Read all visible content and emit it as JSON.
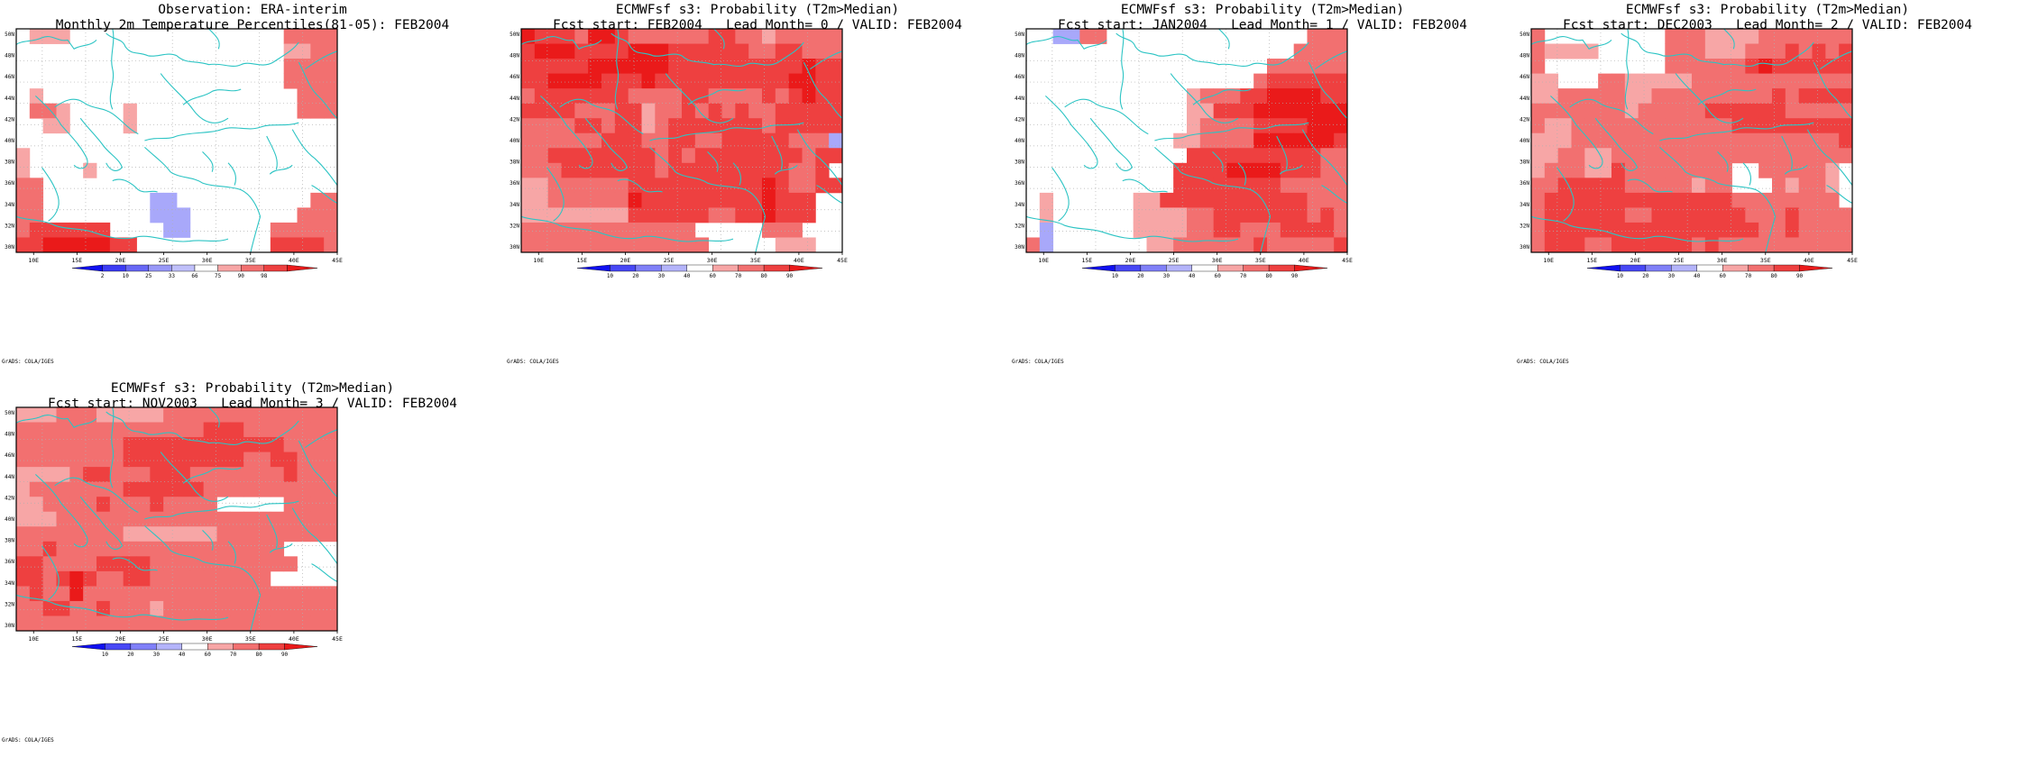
{
  "credit": "GrADS: COLA/IGES",
  "axes": {
    "lon_labels": [
      "10E",
      "15E",
      "20E",
      "25E",
      "30E",
      "35E",
      "40E",
      "45E"
    ],
    "lat_labels": [
      "30N",
      "32N",
      "34N",
      "36N",
      "38N",
      "40N",
      "42N",
      "44N",
      "46N",
      "48N",
      "50N"
    ]
  },
  "colors": {
    "coast": "#2cc4c4",
    "grid": "#b0b0b0",
    "white": "#ffffff",
    "light_red": "#f7a6a6",
    "medium_red": "#f27070",
    "strong_red": "#ee4040",
    "deep_red": "#ea1a1a",
    "light_blue": "#a8a8fa",
    "prob_colorbar": [
      "#1010f0",
      "#4848f5",
      "#8080f8",
      "#b4b4fa",
      "#ffffff",
      "#f7a6a6",
      "#f27070",
      "#ee4040",
      "#ea1a1a"
    ],
    "obs_colorbar": [
      "#1010f0",
      "#3c3cf4",
      "#6868f6",
      "#9898f8",
      "#c0c0fa",
      "#ffffff",
      "#f7a6a6",
      "#f27070",
      "#ee4040",
      "#ea1a1a"
    ]
  },
  "panels": [
    {
      "title_line1": "Observation: ERA-interim",
      "title_line2": "Monthly 2m Temperature Percentiles(81-05): FEB2004",
      "colorbar_labels": [
        "2",
        "10",
        "25",
        "33",
        "66",
        "75",
        "90",
        "98"
      ],
      "colorbar_type": "obs"
    },
    {
      "title_line1": "ECMWFsf s3: Probability (T2m>Median)",
      "title_line2": "Fcst start: FEB2004   Lead Month= 0 / VALID: FEB2004",
      "colorbar_labels": [
        "10",
        "20",
        "30",
        "40",
        "60",
        "70",
        "80",
        "90"
      ],
      "colorbar_type": "prob"
    },
    {
      "title_line1": "ECMWFsf s3: Probability (T2m>Median)",
      "title_line2": "Fcst start: JAN2004   Lead Month= 1 / VALID: FEB2004",
      "colorbar_labels": [
        "10",
        "20",
        "30",
        "40",
        "60",
        "70",
        "80",
        "90"
      ],
      "colorbar_type": "prob"
    },
    {
      "title_line1": "ECMWFsf s3: Probability (T2m>Median)",
      "title_line2": "Fcst start: DEC2003   Lead Month= 2 / VALID: FEB2004",
      "colorbar_labels": [
        "10",
        "20",
        "30",
        "40",
        "60",
        "70",
        "80",
        "90"
      ],
      "colorbar_type": "prob"
    },
    {
      "title_line1": "ECMWFsf s3: Probability (T2m>Median)",
      "title_line2": "Fcst start: NOV2003   Lead Month= 3 / VALID: FEB2004",
      "colorbar_labels": [
        "10",
        "20",
        "30",
        "40",
        "60",
        "70",
        "80",
        "90"
      ],
      "colorbar_type": "prob"
    }
  ],
  "grids": [
    [
      "011100000000000000002222",
      "000000000000000000001122",
      "000000000000000000002222",
      "000000000000000000002222",
      "010000000000000000000222",
      "022100001000000000000222",
      "001100001000000000000000",
      "000000000000000000000000",
      "100000000000000000000000",
      "100001000000000000000000",
      "220000000000000000000000",
      "220000000055000000000022",
      "220000000055500000000222",
      "233333300005500000022222",
      "334444433000000000033332"
    ],
    [
      "433324432222223322122222",
      "344433334443333332233222",
      "333334444443333333333433",
      "334444333433333333334433",
      "233333332222332222323433",
      "333322233122323232233333",
      "222233233123333333233333",
      "222222333223322333332225",
      "223333333323233333333233",
      "222333333323333333332230",
      "112222223333333333432233",
      "112222224333333333433300",
      "111111113333332233433300",
      "222222222222200000222000",
      "222222222222220000011100"
    ],
    [
      "005522000000000000000222",
      "000000000000000000002222",
      "000000000000000000222222",
      "000000000000000002333333",
      "000000000000122233444433",
      "000000000000113334444444",
      "000000000000122223333444",
      "000000000001122224444443",
      "000000000000333333333322",
      "000000000003333444433322",
      "000000000003333333322222",
      "010000001133333333333222",
      "010000001111223333333232",
      "050000001111223322233332",
      "250000000112222223222223"
    ],
    [
      "200000000022211112222222",
      "211110000022211122232323",
      "200000000022222234333333",
      "110002211111222222222222",
      "112222211222222222323333",
      "222222212222233333322222",
      "211222222222222333333333",
      "111222222222222222222223",
      "112211222222222222222222",
      "122211322222222002222210",
      "223333322222122000212210",
      "233333333333333222222220",
      "233333322333333322232222",
      "233333333333333332232222",
      "233322333333232222222222"
    ],
    [
      "111222111112222222222222",
      "222222222222223332222222",
      "222222223333333333332222",
      "222222223333333332233222",
      "111123322233322222223222",
      "122222223333332222222222",
      "112222322232222000002222",
      "111222222222222222222222",
      "222222221111111222222222",
      "223222222222222222220000",
      "332222333322222222222000",
      "332343223322222222200000",
      "232242222222222222222222",
      "223322322212222222222222",
      "222222222222222222222222"
    ]
  ],
  "coastline_paths": [
    "M0.00,0.07 C0.02,0.05 0.05,0.06 0.08,0.04 C0.11,0.02 0.13,0.06 0.16,0.05 L0.18,0.09 C0.20,0.07 0.23,0.08 0.25,0.05",
    "M0.28,0.02 C0.30,0.05 0.33,0.04 0.34,0.08 C0.36,0.12 0.38,0.10 0.41,0.12 C0.44,0.13 0.47,0.10 0.50,0.12",
    "M0.50,0.12 C0.53,0.16 0.56,0.14 0.60,0.16 C0.64,0.15 0.67,0.18 0.70,0.16 C0.73,0.14 0.76,0.18 0.80,0.15 C0.83,0.12 0.86,0.10 0.88,0.06",
    "M0.90,0.18 C0.93,0.15 0.96,0.12 1.00,0.10",
    "M0.12,0.35 C0.15,0.32 0.18,0.30 0.21,0.33 C0.24,0.36 0.27,0.35 0.30,0.38 C0.33,0.41 0.35,0.45 0.38,0.47",
    "M0.20,0.40 C0.22,0.44 0.25,0.48 0.27,0.52 C0.29,0.56 0.32,0.58 0.33,0.62 C0.31,0.65 0.29,0.63 0.28,0.60",
    "M0.06,0.30 C0.09,0.34 0.12,0.38 0.14,0.43 C0.17,0.48 0.20,0.52 0.22,0.58 C0.23,0.62 0.20,0.64 0.18,0.61",
    "M0.40,0.50 C0.44,0.48 0.47,0.50 0.50,0.48 C0.55,0.46 0.60,0.47 0.64,0.45 C0.68,0.43 0.72,0.46 0.76,0.44 C0.80,0.42 0.84,0.44 0.88,0.42",
    "M0.40,0.53 C0.43,0.57 0.46,0.60 0.48,0.64 C0.51,0.67 0.55,0.66 0.58,0.69 C0.62,0.71 0.66,0.70 0.70,0.72 C0.73,0.74 0.75,0.79 0.76,0.84",
    "M0.76,0.84 C0.75,0.89 0.74,0.94 0.73,1.00",
    "M0.00,0.84 C0.04,0.86 0.08,0.85 0.12,0.88 C0.16,0.90 0.20,0.89 0.24,0.91 C0.28,0.93 0.33,0.95 0.38,0.93 C0.43,0.92 0.48,0.96 0.54,0.95 C0.58,0.94 0.62,0.96 0.66,0.94",
    "M0.86,0.45 C0.88,0.50 0.90,0.55 0.93,0.58 C0.96,0.62 0.98,0.66 1.00,0.70",
    "M0.88,0.15 C0.90,0.20 0.91,0.26 0.94,0.30 C0.97,0.34 0.98,0.38 1.00,0.40",
    "M0.52,0.34 C0.55,0.30 0.58,0.31 0.61,0.28 C0.64,0.26 0.67,0.29 0.70,0.27",
    "M0.30,0.00 C0.31,0.06 0.29,0.12 0.30,0.18 C0.31,0.24 0.28,0.30 0.30,0.36",
    "M0.45,0.20 C0.48,0.26 0.52,0.30 0.55,0.36 C0.58,0.42 0.62,0.44 0.66,0.40",
    "M0.08,0.62 C0.10,0.66 0.12,0.70 0.13,0.75 C0.14,0.80 0.12,0.84 0.10,0.86",
    "M0.30,0.68 C0.33,0.66 0.36,0.69 0.38,0.72 C0.40,0.74 0.42,0.72 0.44,0.73",
    "M0.58,0.55 C0.60,0.58 0.62,0.60 0.61,0.64",
    "M0.66,0.60 C0.68,0.63 0.69,0.66 0.68,0.70",
    "M0.79,0.65 C0.81,0.62 0.84,0.64 0.86,0.61",
    "M0.60,0.00 C0.62,0.03 0.64,0.05 0.63,0.09",
    "M0.78,0.48 C0.80,0.54 0.82,0.58 0.81,0.63",
    "M0.92,0.70 C0.95,0.72 0.97,0.76 1.00,0.78"
  ]
}
